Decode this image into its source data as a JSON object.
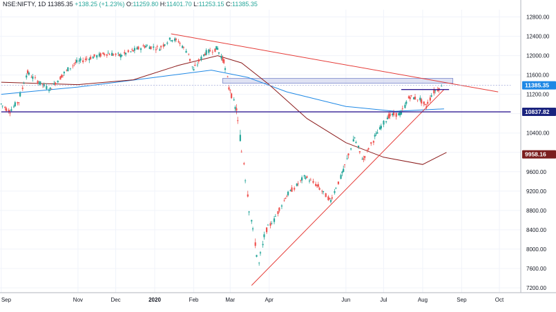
{
  "header": {
    "symbol": "NSE:NIFTY, 1D",
    "last": "11385.35",
    "change": "+138.25 (+1.23%)",
    "open_label": "O:",
    "open": "11259.80",
    "high_label": "H:",
    "high": "11401.70",
    "low_label": "L:",
    "low": "11253.15",
    "close_label": "C:",
    "close": "11385.35"
  },
  "chart_data": {
    "type": "candlestick",
    "x_tick_labels": [
      "Sep",
      "Nov",
      "Dec",
      "2020",
      "Feb",
      "Mar",
      "Apr",
      "Jun",
      "Jul",
      "Aug",
      "Sep",
      "Oct"
    ],
    "y_ticks": [
      7200,
      7600,
      8000,
      8400,
      8800,
      9200,
      9600,
      10000,
      10400,
      10800,
      11200,
      11600,
      12000,
      12400,
      12800
    ],
    "ylim": [
      7100,
      12950
    ],
    "price_labels": [
      {
        "value": 11385.35,
        "text": "11385.35",
        "color": "#1e88e5"
      },
      {
        "value": 10837.82,
        "text": "10837.82",
        "color": "#1a237e"
      },
      {
        "value": 9958.16,
        "text": "9958.16",
        "color": "#7b1e1e"
      }
    ],
    "ohlc_path": [
      [
        "2019-09-01",
        11000
      ],
      [
        "2019-09-08",
        10850
      ],
      [
        "2019-09-15",
        11050
      ],
      [
        "2019-09-22",
        11650
      ],
      [
        "2019-10-01",
        11450
      ],
      [
        "2019-10-10",
        11300
      ],
      [
        "2019-10-20",
        11600
      ],
      [
        "2019-10-30",
        11850
      ],
      [
        "2019-11-10",
        11950
      ],
      [
        "2019-11-25",
        12050
      ],
      [
        "2019-12-05",
        12000
      ],
      [
        "2019-12-15",
        12100
      ],
      [
        "2019-12-25",
        12200
      ],
      [
        "2020-01-05",
        12150
      ],
      [
        "2020-01-14",
        12350
      ],
      [
        "2020-01-20",
        12300
      ],
      [
        "2020-01-28",
        12050
      ],
      [
        "2020-02-01",
        11700
      ],
      [
        "2020-02-10",
        12050
      ],
      [
        "2020-02-20",
        12150
      ],
      [
        "2020-02-25",
        11900
      ],
      [
        "2020-03-01",
        11300
      ],
      [
        "2020-03-06",
        10900
      ],
      [
        "2020-03-12",
        9800
      ],
      [
        "2020-03-18",
        8600
      ],
      [
        "2020-03-24",
        7700
      ],
      [
        "2020-03-30",
        8400
      ],
      [
        "2020-04-05",
        8600
      ],
      [
        "2020-04-15",
        9100
      ],
      [
        "2020-04-30",
        9500
      ],
      [
        "2020-05-10",
        9300
      ],
      [
        "2020-05-20",
        9000
      ],
      [
        "2020-05-30",
        9600
      ],
      [
        "2020-06-08",
        10300
      ],
      [
        "2020-06-15",
        9850
      ],
      [
        "2020-06-25",
        10350
      ],
      [
        "2020-07-05",
        10750
      ],
      [
        "2020-07-15",
        10800
      ],
      [
        "2020-07-22",
        11150
      ],
      [
        "2020-07-30",
        11100
      ],
      [
        "2020-08-04",
        10950
      ],
      [
        "2020-08-10",
        11250
      ],
      [
        "2020-08-18",
        11380
      ]
    ],
    "moving_averages": [
      {
        "color": "#1e88e5",
        "points": [
          [
            "2019-09-01",
            11200
          ],
          [
            "2019-11-01",
            11350
          ],
          [
            "2020-01-01",
            11550
          ],
          [
            "2020-02-15",
            11700
          ],
          [
            "2020-03-15",
            11550
          ],
          [
            "2020-04-15",
            11250
          ],
          [
            "2020-06-01",
            10950
          ],
          [
            "2020-07-10",
            10850
          ],
          [
            "2020-08-18",
            10900
          ]
        ]
      },
      {
        "color": "#8b1a1a",
        "points": [
          [
            "2019-09-01",
            11450
          ],
          [
            "2019-11-01",
            11400
          ],
          [
            "2019-12-15",
            11500
          ],
          [
            "2020-01-20",
            11800
          ],
          [
            "2020-02-20",
            12000
          ],
          [
            "2020-03-10",
            11850
          ],
          [
            "2020-04-01",
            11400
          ],
          [
            "2020-05-01",
            10700
          ],
          [
            "2020-06-01",
            10200
          ],
          [
            "2020-07-01",
            9900
          ],
          [
            "2020-08-01",
            9750
          ],
          [
            "2020-08-20",
            10000
          ]
        ]
      }
    ],
    "trend_lines": [
      {
        "color": "#e53935",
        "from": [
          "2020-01-14",
          12450
        ],
        "to": [
          "2020-09-30",
          11250
        ]
      },
      {
        "color": "#e53935",
        "from": [
          "2020-03-18",
          7250
        ],
        "to": [
          "2020-08-18",
          11300
        ]
      },
      {
        "color": "#311b92",
        "from": [
          "2019-09-01",
          10837.82
        ],
        "to": [
          "2020-10-10",
          10837.82
        ]
      },
      {
        "color": "#311b92",
        "from": [
          "2020-07-15",
          11300
        ],
        "to": [
          "2020-08-22",
          11300
        ]
      },
      {
        "color": "#9fa8da",
        "from": [
          "2019-09-01",
          11385.35
        ],
        "to": [
          "2020-10-10",
          11385.35
        ],
        "dashed": true
      }
    ],
    "zone": {
      "from": "2020-02-24",
      "to": "2020-08-25",
      "low": 11430,
      "high": 11530
    },
    "grid": true,
    "legend": "none"
  }
}
